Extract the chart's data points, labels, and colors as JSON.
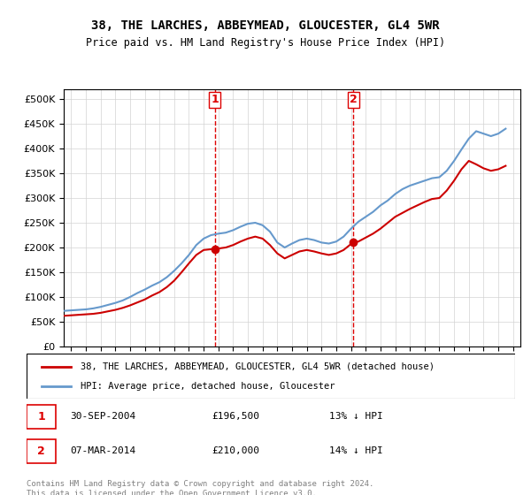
{
  "title": "38, THE LARCHES, ABBEYMEAD, GLOUCESTER, GL4 5WR",
  "subtitle": "Price paid vs. HM Land Registry's House Price Index (HPI)",
  "legend_line1": "38, THE LARCHES, ABBEYMEAD, GLOUCESTER, GL4 5WR (detached house)",
  "legend_line2": "HPI: Average price, detached house, Gloucester",
  "footer": "Contains HM Land Registry data © Crown copyright and database right 2024.\nThis data is licensed under the Open Government Licence v3.0.",
  "annotation1_label": "1",
  "annotation1_date": "30-SEP-2004",
  "annotation1_price": "£196,500",
  "annotation1_info": "13% ↓ HPI",
  "annotation2_label": "2",
  "annotation2_date": "07-MAR-2014",
  "annotation2_price": "£210,000",
  "annotation2_info": "14% ↓ HPI",
  "red_color": "#cc0000",
  "blue_color": "#6699cc",
  "dashed_red": "#dd0000",
  "ylim": [
    0,
    520000
  ],
  "yticks": [
    0,
    50000,
    100000,
    150000,
    200000,
    250000,
    300000,
    350000,
    400000,
    450000,
    500000
  ],
  "ytick_labels": [
    "£0",
    "£50K",
    "£100K",
    "£150K",
    "£200K",
    "£250K",
    "£300K",
    "£350K",
    "£400K",
    "£450K",
    "£500K"
  ],
  "xlim_start": 1994.5,
  "xlim_end": 2025.5,
  "vline1_x": 2004.75,
  "vline2_x": 2014.17,
  "marker1_x": 2004.75,
  "marker1_y": 196500,
  "marker2_x": 2014.17,
  "marker2_y": 210000,
  "hpi_data": {
    "years": [
      1994.5,
      1995.0,
      1995.5,
      1996.0,
      1996.5,
      1997.0,
      1997.5,
      1998.0,
      1998.5,
      1999.0,
      1999.5,
      2000.0,
      2000.5,
      2001.0,
      2001.5,
      2002.0,
      2002.5,
      2003.0,
      2003.5,
      2004.0,
      2004.5,
      2005.0,
      2005.5,
      2006.0,
      2006.5,
      2007.0,
      2007.5,
      2008.0,
      2008.5,
      2009.0,
      2009.5,
      2010.0,
      2010.5,
      2011.0,
      2011.5,
      2012.0,
      2012.5,
      2013.0,
      2013.5,
      2014.0,
      2014.5,
      2015.0,
      2015.5,
      2016.0,
      2016.5,
      2017.0,
      2017.5,
      2018.0,
      2018.5,
      2019.0,
      2019.5,
      2020.0,
      2020.5,
      2021.0,
      2021.5,
      2022.0,
      2022.5,
      2023.0,
      2023.5,
      2024.0,
      2024.5
    ],
    "values": [
      72000,
      73000,
      74000,
      75000,
      77000,
      80000,
      84000,
      88000,
      93000,
      100000,
      108000,
      115000,
      123000,
      130000,
      140000,
      153000,
      168000,
      185000,
      205000,
      218000,
      225000,
      228000,
      230000,
      235000,
      242000,
      248000,
      250000,
      245000,
      232000,
      210000,
      200000,
      208000,
      215000,
      218000,
      215000,
      210000,
      208000,
      212000,
      222000,
      238000,
      252000,
      262000,
      272000,
      285000,
      295000,
      308000,
      318000,
      325000,
      330000,
      335000,
      340000,
      342000,
      355000,
      375000,
      398000,
      420000,
      435000,
      430000,
      425000,
      430000,
      440000
    ]
  },
  "price_data": {
    "years": [
      1994.5,
      1995.0,
      1995.5,
      1996.0,
      1996.5,
      1997.0,
      1997.5,
      1998.0,
      1998.5,
      1999.0,
      1999.5,
      2000.0,
      2000.5,
      2001.0,
      2001.5,
      2002.0,
      2002.5,
      2003.0,
      2003.5,
      2004.0,
      2004.5,
      2004.75,
      2005.0,
      2005.5,
      2006.0,
      2006.5,
      2007.0,
      2007.5,
      2008.0,
      2008.5,
      2009.0,
      2009.5,
      2010.0,
      2010.5,
      2011.0,
      2011.5,
      2012.0,
      2012.5,
      2013.0,
      2013.5,
      2014.0,
      2014.17,
      2014.5,
      2015.0,
      2015.5,
      2016.0,
      2016.5,
      2017.0,
      2017.5,
      2018.0,
      2018.5,
      2019.0,
      2019.5,
      2020.0,
      2020.5,
      2021.0,
      2021.5,
      2022.0,
      2022.5,
      2023.0,
      2023.5,
      2024.0,
      2024.5
    ],
    "values": [
      62000,
      63000,
      64000,
      65000,
      66000,
      68000,
      71000,
      74000,
      78000,
      83000,
      89000,
      95000,
      103000,
      110000,
      120000,
      133000,
      150000,
      168000,
      185000,
      195000,
      196500,
      196500,
      198000,
      200000,
      205000,
      212000,
      218000,
      222000,
      218000,
      205000,
      188000,
      178000,
      185000,
      192000,
      195000,
      192000,
      188000,
      185000,
      188000,
      195000,
      207000,
      210000,
      212000,
      220000,
      228000,
      238000,
      250000,
      262000,
      270000,
      278000,
      285000,
      292000,
      298000,
      300000,
      315000,
      335000,
      358000,
      375000,
      368000,
      360000,
      355000,
      358000,
      365000
    ]
  }
}
